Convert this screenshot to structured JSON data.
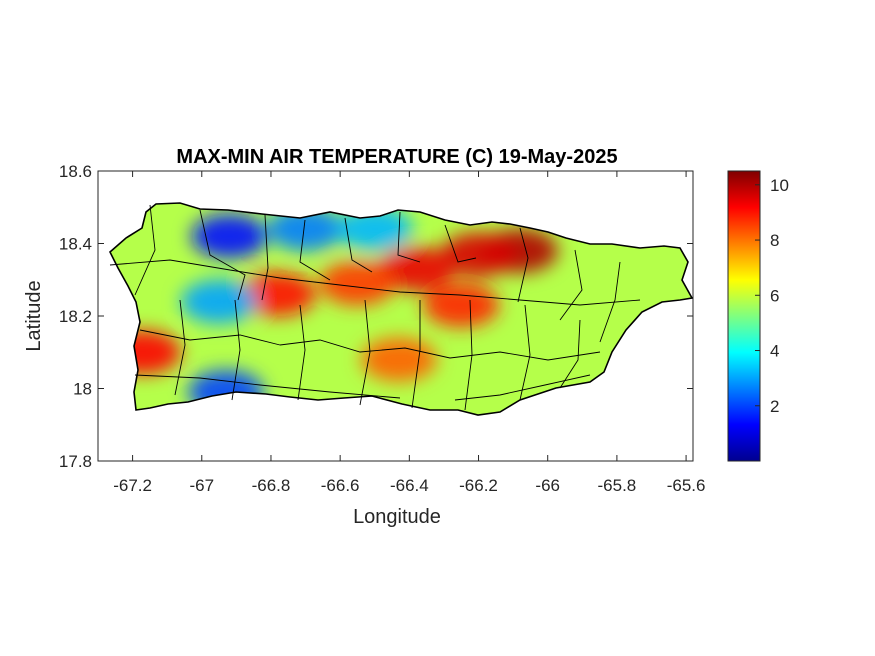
{
  "chart_data": {
    "type": "heatmap",
    "title": "MAX-MIN AIR TEMPERATURE (C) 19-May-2025",
    "xlabel": "Longitude",
    "ylabel": "Latitude",
    "xlim": [
      -67.3,
      -65.58
    ],
    "ylim": [
      17.8,
      18.6
    ],
    "xticks": [
      "-67.2",
      "-67",
      "-66.8",
      "-66.6",
      "-66.4",
      "-66.2",
      "-66",
      "-65.8",
      "-65.6"
    ],
    "xtick_values": [
      -67.2,
      -67.0,
      -66.8,
      -66.6,
      -66.4,
      -66.2,
      -66.0,
      -65.8,
      -65.6
    ],
    "yticks": [
      "18.6",
      "18.4",
      "18.2",
      "18",
      "17.8"
    ],
    "ytick_values": [
      18.6,
      18.4,
      18.2,
      18.0,
      17.8
    ],
    "colorbar": {
      "colormap": "jet",
      "range": [
        0,
        10.5
      ],
      "ticks": [
        "10",
        "8",
        "6",
        "4",
        "2"
      ],
      "tick_values": [
        10,
        8,
        6,
        4,
        2
      ]
    },
    "grid": false,
    "region": "Puerto Rico",
    "hotspots": [
      {
        "lon": -66.08,
        "lat": 18.38,
        "value": 10.0
      },
      {
        "lon": -66.2,
        "lat": 18.37,
        "value": 9.6
      },
      {
        "lon": -66.38,
        "lat": 18.33,
        "value": 9.4
      },
      {
        "lon": -66.55,
        "lat": 18.29,
        "value": 8.6
      },
      {
        "lon": -66.78,
        "lat": 18.26,
        "value": 9.0
      },
      {
        "lon": -67.17,
        "lat": 18.1,
        "value": 9.2
      },
      {
        "lon": -66.25,
        "lat": 18.23,
        "value": 8.8
      },
      {
        "lon": -66.43,
        "lat": 18.08,
        "value": 8.2
      },
      {
        "lon": -66.92,
        "lat": 18.42,
        "value": 1.5
      },
      {
        "lon": -66.7,
        "lat": 18.44,
        "value": 2.6
      },
      {
        "lon": -66.95,
        "lat": 18.24,
        "value": 3.0
      },
      {
        "lon": -66.5,
        "lat": 18.44,
        "value": 3.2
      },
      {
        "lon": -66.93,
        "lat": 17.99,
        "value": 2.0
      }
    ],
    "background_value": 5.8
  }
}
